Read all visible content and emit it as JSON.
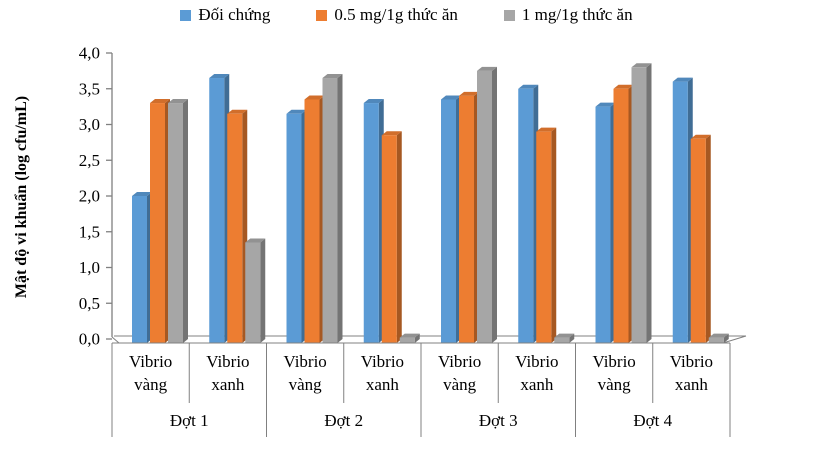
{
  "chart_data": {
    "type": "bar",
    "style": "3d-clustered-column",
    "title": "",
    "xlabel": "",
    "ylabel": "Mật độ vi khuẩn (log cfu/mL)",
    "ylim": [
      0,
      4
    ],
    "ytick_step": 0.5,
    "ytick_labels": [
      "0,0",
      "0,5",
      "1,0",
      "1,5",
      "2,0",
      "2,5",
      "3,0",
      "3,5",
      "4,0"
    ],
    "grid": false,
    "legend_position": "top",
    "groups": [
      "Đợt 1",
      "Đợt 2",
      "Đợt 3",
      "Đợt 4"
    ],
    "subgroups": [
      "Vibrio vàng",
      "Vibrio xanh"
    ],
    "categories": [
      "Đợt 1 Vibrio vàng",
      "Đợt 1 Vibrio xanh",
      "Đợt 2 Vibrio vàng",
      "Đợt 2 Vibrio xanh",
      "Đợt 3 Vibrio vàng",
      "Đợt 3 Vibrio xanh",
      "Đợt 4 Vibrio vàng",
      "Đợt 4 Vibrio xanh"
    ],
    "series": [
      {
        "name": "Đối chứng",
        "color": "#5B9BD5",
        "values": [
          2.0,
          3.65,
          3.15,
          3.3,
          3.35,
          3.5,
          3.25,
          3.6
        ]
      },
      {
        "name": "0.5 mg/1g thức ăn",
        "color": "#ED7D31",
        "values": [
          3.3,
          3.15,
          3.35,
          2.85,
          3.4,
          2.9,
          3.5,
          2.8
        ]
      },
      {
        "name": "1 mg/1g thức ăn",
        "color": "#A6A6A6",
        "values": [
          3.3,
          1.35,
          3.65,
          0.02,
          3.75,
          0.02,
          3.8,
          0.02
        ]
      }
    ],
    "axis_color": "#808080",
    "text_color": "#000000"
  }
}
